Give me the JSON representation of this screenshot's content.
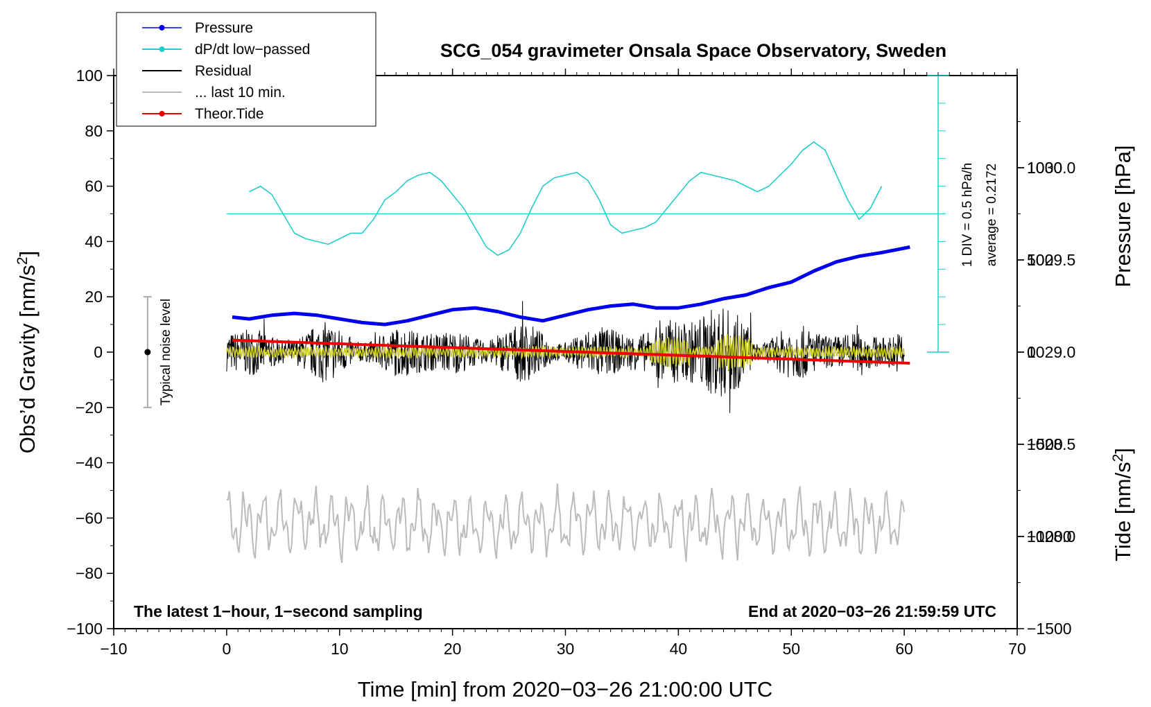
{
  "chart_data": {
    "type": "line",
    "title": "SCG_054 gravimeter Onsala Space Observatory, Sweden",
    "xlabel": "Time [min] from 2020−03−26 21:00:00 UTC",
    "ylabel_left": "Obs’d Gravity [nm/s²]",
    "ylabel_right_pressure": "Pressure [hPa]",
    "ylabel_right_tide": "Tide [nm/s²]",
    "xlim": [
      -10,
      70
    ],
    "ylim_left": [
      -100,
      100
    ],
    "pressure_range": [
      1027.5,
      1030.5
    ],
    "tide_range": [
      -1500,
      1500
    ],
    "x_ticks": [
      -10,
      0,
      10,
      20,
      30,
      40,
      50,
      60,
      70
    ],
    "x_tick_labels": [
      "−10",
      "0",
      "10",
      "20",
      "30",
      "40",
      "50",
      "60",
      "70"
    ],
    "y_left_ticks": [
      -100,
      -80,
      -60,
      -40,
      -20,
      0,
      20,
      40,
      60,
      80,
      100
    ],
    "y_left_tick_labels": [
      "−100",
      "−80",
      "−60",
      "−40",
      "−20",
      "0",
      "20",
      "40",
      "60",
      "80",
      "100"
    ],
    "pressure_ticks": [
      1028.0,
      1028.5,
      1029.0,
      1029.5,
      1030.0
    ],
    "pressure_tick_labels": [
      "1028.0",
      "1028.5",
      "1029.0",
      "1029.5",
      "1030.0"
    ],
    "tide_ticks": [
      -1500,
      -1000,
      -500,
      0,
      500,
      1000
    ],
    "tide_tick_labels": [
      "−1500",
      "−1000",
      "−500",
      "0",
      "500",
      "1000"
    ],
    "legend": {
      "position": "top-left",
      "entries": [
        {
          "label": "Pressure",
          "color": "#0000ee",
          "marker": true
        },
        {
          "label": "dP/dt low−passed",
          "color": "#22cccc",
          "marker": true
        },
        {
          "label": "Residual",
          "color": "#000000",
          "marker": false
        },
        {
          "label": "... last 10 min.",
          "color": "#bbbbbb",
          "marker": false
        },
        {
          "label": "Theor.Tide",
          "color": "#ee0000",
          "marker": true
        }
      ]
    },
    "annotations": {
      "bottom_left": "The latest 1−hour, 1−second sampling",
      "bottom_right": "End at 2020−03−26 21:59:59 UTC",
      "noise_label": "Typical noise level",
      "dpdt_scale": "1 DIV = 0.5 hPa/h",
      "dpdt_average": "average = 0.2172"
    },
    "noise_bar": {
      "x": -7,
      "center": 0,
      "range": [
        -20,
        20
      ]
    },
    "dpdt_axis": {
      "x": 63,
      "zero_level": 50,
      "top": 100,
      "bottom": 0,
      "div_step": 10
    },
    "series": [
      {
        "name": "Pressure",
        "axis": "pressure",
        "color": "#0000ee",
        "x": [
          0.5,
          2,
          4,
          6,
          8,
          10,
          12,
          14,
          16,
          18,
          20,
          22,
          24,
          26,
          28,
          30,
          32,
          34,
          36,
          38,
          40,
          42,
          44,
          46,
          48,
          50,
          52,
          54,
          56,
          58,
          60.5
        ],
        "values": [
          1029.19,
          1029.18,
          1029.2,
          1029.21,
          1029.2,
          1029.18,
          1029.16,
          1029.15,
          1029.17,
          1029.2,
          1029.23,
          1029.24,
          1029.22,
          1029.19,
          1029.17,
          1029.2,
          1029.23,
          1029.25,
          1029.26,
          1029.24,
          1029.24,
          1029.26,
          1029.29,
          1029.31,
          1029.35,
          1029.38,
          1029.44,
          1029.49,
          1029.52,
          1029.54,
          1029.57
        ]
      },
      {
        "name": "dP/dt low−passed",
        "axis": "left",
        "color": "#22cccc",
        "x": [
          2,
          3,
          4,
          5,
          6,
          7,
          8,
          9,
          10,
          11,
          12,
          13,
          14,
          15,
          16,
          17,
          18,
          19,
          20,
          21,
          22,
          23,
          24,
          25,
          26,
          27,
          28,
          29,
          30,
          31,
          32,
          33,
          34,
          35,
          36,
          37,
          38,
          39,
          40,
          41,
          42,
          43,
          44,
          45,
          46,
          47,
          48,
          49,
          50,
          51,
          52,
          53,
          54,
          55,
          56,
          57,
          58
        ],
        "values": [
          58,
          60,
          57,
          50,
          43,
          41,
          40,
          39,
          41,
          43,
          43,
          48,
          55,
          58,
          62,
          64,
          65,
          62,
          57,
          52,
          45,
          38,
          35,
          37,
          43,
          52,
          60,
          63,
          64,
          65,
          62,
          55,
          46,
          43,
          44,
          45,
          47,
          52,
          57,
          62,
          65,
          64,
          63,
          62,
          60,
          58,
          60,
          64,
          68,
          73,
          76,
          73,
          64,
          55,
          48,
          52,
          60
        ]
      },
      {
        "name": "Residual",
        "axis": "left",
        "color": "#000000",
        "x": [
          0,
          60
        ],
        "amplitude": [
          -22,
          23
        ],
        "note": "1-second samples, mostly within ±10 nm/s², largest excursions near minutes 38–46"
      },
      {
        "name": "... last 10 min.",
        "axis": "left",
        "color": "#bbbbbb",
        "x": [
          0,
          60
        ],
        "values_range": [
          -80,
          -46
        ],
        "note": "oscillating around −62 nm/s²"
      },
      {
        "name": "Theor.Tide",
        "axis": "tide",
        "color": "#ee0000",
        "x": [
          0.5,
          60.5
        ],
        "values": [
          65,
          -60
        ]
      }
    ]
  }
}
